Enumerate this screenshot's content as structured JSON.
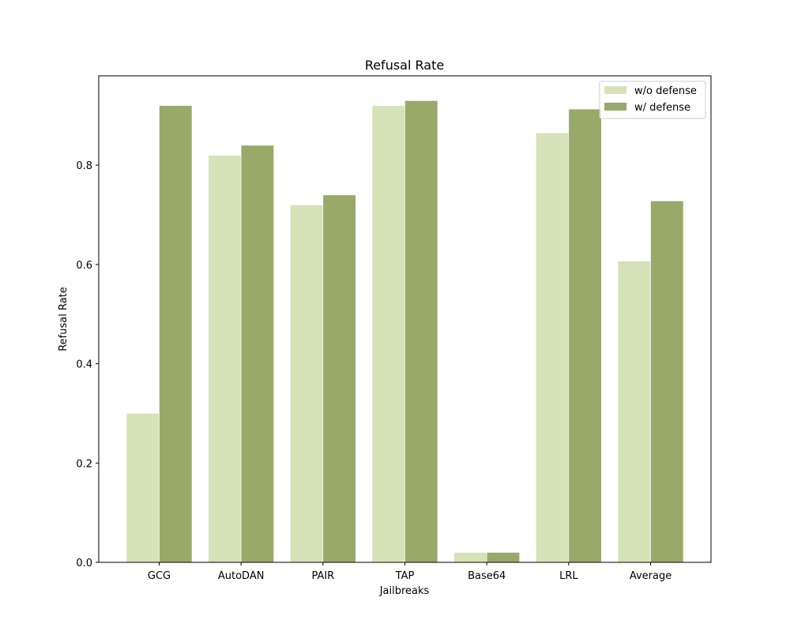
{
  "chart_data": {
    "type": "bar",
    "title": "Refusal Rate",
    "xlabel": "Jailbreaks",
    "ylabel": "Refusal Rate",
    "categories": [
      "GCG",
      "AutoDAN",
      "PAIR",
      "TAP",
      "Base64",
      "LRL",
      "Average"
    ],
    "series": [
      {
        "name": "w/o defense",
        "color": "#d6e3b8",
        "values": [
          0.3,
          0.82,
          0.72,
          0.92,
          0.02,
          0.865,
          0.607
        ]
      },
      {
        "name": "w/ defense",
        "color": "#98a969",
        "values": [
          0.92,
          0.84,
          0.74,
          0.93,
          0.02,
          0.913,
          0.728
        ]
      }
    ],
    "ylim": [
      0,
      0.98
    ],
    "yticks": [
      0.0,
      0.2,
      0.4,
      0.6,
      0.8
    ],
    "ytick_labels": [
      "0.0",
      "0.2",
      "0.4",
      "0.6",
      "0.8"
    ],
    "grid": false,
    "legend_position": "top-right"
  }
}
